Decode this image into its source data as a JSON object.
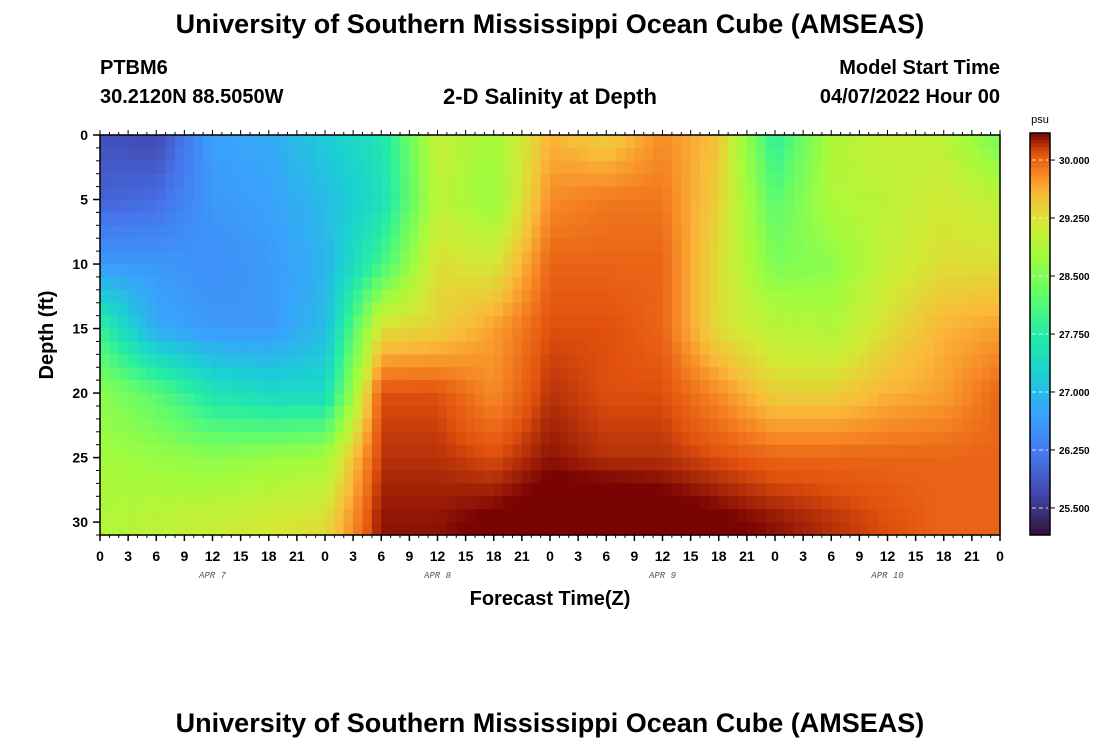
{
  "header": {
    "title": "University of Southern Mississippi Ocean Cube (AMSEAS)",
    "station": "PTBM6",
    "location": "30.2120N  88.5050W",
    "subtitle": "2-D Salinity at Depth",
    "model_label": "Model Start Time",
    "model_time": "04/07/2022 Hour 00"
  },
  "footer": {
    "title": "University of Southern Mississippi Ocean Cube (AMSEAS)"
  },
  "chart_data": {
    "type": "heatmap",
    "title": "2-D Salinity at Depth",
    "xlabel": "Forecast Time(Z)",
    "ylabel": "Depth (ft)",
    "xlim": [
      0,
      96
    ],
    "ylim": [
      31,
      0
    ],
    "x_ticks": [
      0,
      3,
      6,
      9,
      12,
      15,
      18,
      21,
      24,
      27,
      30,
      33,
      36,
      39,
      42,
      45,
      48,
      51,
      54,
      57,
      60,
      63,
      66,
      69,
      72,
      75,
      78,
      81,
      84,
      87,
      90,
      93,
      96
    ],
    "x_tick_labels": [
      "0",
      "3",
      "6",
      "9",
      "12",
      "15",
      "18",
      "21",
      "0",
      "3",
      "6",
      "9",
      "12",
      "15",
      "18",
      "21",
      "0",
      "3",
      "6",
      "9",
      "12",
      "15",
      "18",
      "21",
      "0",
      "3",
      "6",
      "9",
      "12",
      "15",
      "18",
      "21",
      "0"
    ],
    "day_labels": [
      {
        "label": "APR 7",
        "x": 12
      },
      {
        "label": "APR 8",
        "x": 36
      },
      {
        "label": "APR 9",
        "x": 60
      },
      {
        "label": "APR 10",
        "x": 84
      }
    ],
    "y_ticks": [
      0,
      5,
      10,
      15,
      20,
      25,
      30
    ],
    "colorbar": {
      "unit": "psu",
      "range": [
        25.15,
        30.35
      ],
      "ticks": [
        30.0,
        29.25,
        28.5,
        27.75,
        27.0,
        26.25,
        25.5
      ],
      "tick_labels": [
        "30.000",
        "29.250",
        "28.500",
        "27.750",
        "27.000",
        "26.250",
        "25.500"
      ]
    },
    "grid": {
      "times": [
        0,
        6,
        12,
        18,
        24,
        30,
        36,
        42,
        48,
        54,
        60,
        66,
        72,
        78,
        84,
        90,
        96
      ],
      "depths": [
        0,
        5,
        10,
        15,
        20,
        25,
        30
      ],
      "values": [
        [
          25.8,
          25.7,
          26.7,
          26.8,
          27.2,
          27.6,
          29.1,
          28.8,
          29.6,
          29.4,
          29.8,
          29.5,
          27.8,
          28.9,
          29.1,
          29.0,
          28.4
        ],
        [
          26.0,
          26.1,
          26.6,
          26.7,
          27.0,
          27.5,
          29.0,
          28.7,
          29.8,
          29.9,
          29.9,
          29.4,
          28.2,
          28.9,
          29.0,
          29.2,
          29.0
        ],
        [
          26.6,
          26.6,
          26.5,
          26.6,
          26.9,
          28.0,
          29.3,
          29.2,
          30.0,
          30.0,
          30.0,
          29.3,
          28.5,
          28.6,
          29.1,
          29.3,
          29.3
        ],
        [
          27.9,
          26.8,
          26.6,
          26.6,
          27.0,
          29.3,
          29.4,
          29.7,
          30.1,
          30.1,
          30.0,
          29.3,
          29.0,
          28.9,
          29.3,
          29.6,
          29.7
        ],
        [
          28.6,
          28.2,
          27.6,
          27.4,
          27.4,
          30.1,
          30.1,
          29.8,
          30.2,
          30.1,
          30.1,
          29.8,
          29.4,
          29.4,
          29.6,
          29.7,
          30.0
        ],
        [
          28.8,
          28.7,
          28.6,
          28.7,
          28.8,
          30.2,
          30.2,
          30.1,
          30.3,
          30.2,
          30.2,
          30.1,
          30.0,
          30.0,
          30.0,
          30.0,
          30.0
        ],
        [
          28.9,
          29.0,
          29.1,
          29.2,
          29.3,
          30.3,
          30.3,
          30.4,
          30.5,
          30.6,
          30.5,
          30.4,
          30.3,
          30.2,
          30.1,
          30.0,
          30.0
        ]
      ]
    }
  }
}
